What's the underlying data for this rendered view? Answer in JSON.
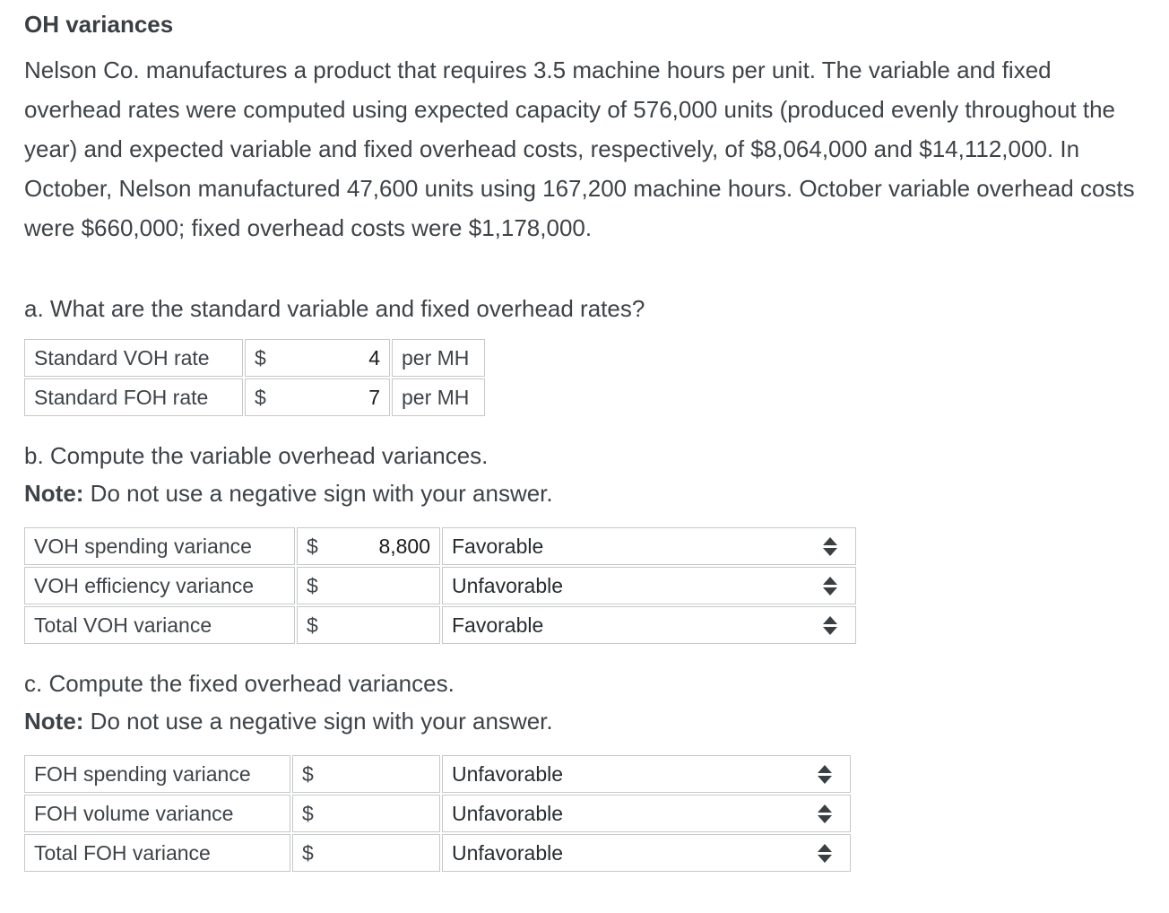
{
  "title": "OH variances",
  "problem": "Nelson Co. manufactures a product that requires 3.5 machine hours per unit. The variable and fixed overhead rates were computed using expected capacity of 576,000 units (produced evenly throughout the year) and expected variable and fixed overhead costs, respectively, of $8,064,000 and $14,112,000. In October, Nelson manufactured 47,600 units using 167,200 machine hours. October variable overhead costs were $660,000; fixed overhead costs were $1,178,000.",
  "sections": {
    "a": {
      "heading": "a. What are the standard variable and fixed overhead rates?",
      "rows": [
        {
          "label": "Standard VOH rate",
          "currency": "$",
          "value": "4",
          "unit": "per MH"
        },
        {
          "label": "Standard FOH rate",
          "currency": "$",
          "value": "7",
          "unit": "per MH"
        }
      ]
    },
    "b": {
      "heading": "b. Compute the variable overhead variances.",
      "note_label": "Note:",
      "note_text": " Do not use a negative sign with your answer.",
      "rows": [
        {
          "label": "VOH spending variance",
          "currency": "$",
          "value": "8,800",
          "direction": "Favorable"
        },
        {
          "label": "VOH efficiency variance",
          "currency": "$",
          "value": "",
          "direction": "Unfavorable"
        },
        {
          "label": "Total VOH variance",
          "currency": "$",
          "value": "",
          "direction": "Favorable"
        }
      ]
    },
    "c": {
      "heading": "c. Compute the fixed overhead variances.",
      "note_label": "Note:",
      "note_text": " Do not use a negative sign with your answer.",
      "rows": [
        {
          "label": "FOH spending variance",
          "currency": "$",
          "value": "",
          "direction": "Unfavorable"
        },
        {
          "label": "FOH volume variance",
          "currency": "$",
          "value": "",
          "direction": "Unfavorable"
        },
        {
          "label": "Total FOH variance",
          "currency": "$",
          "value": "",
          "direction": "Unfavorable"
        }
      ]
    }
  },
  "colors": {
    "input_bg": "#d6e8f0",
    "cell_border": "#c6c8c9",
    "body_text": "#3e4348",
    "value_text": "#1b1b1b"
  }
}
